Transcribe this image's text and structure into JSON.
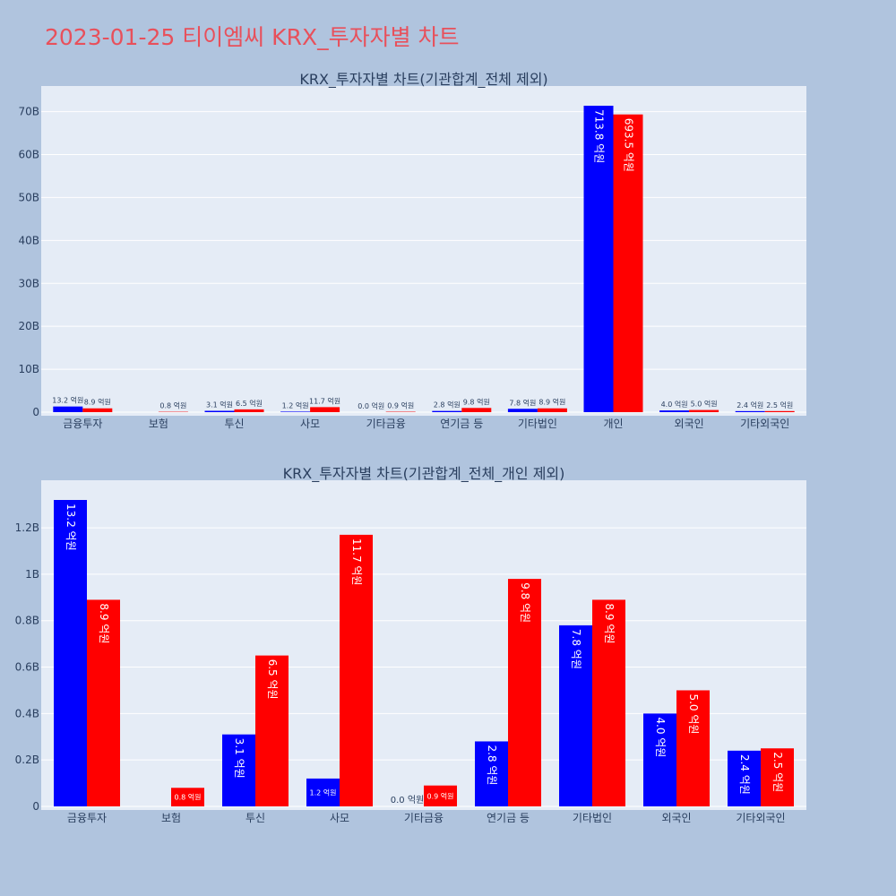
{
  "page": {
    "title": "2023-01-25 티이엠씨 KRX_투자자별 차트"
  },
  "colors": {
    "background": "#b0c4de",
    "plot_bg": "#e5ecf6",
    "series_a": "#0000ff",
    "series_b": "#ff0000",
    "title": "#e8505b"
  },
  "chart_data": [
    {
      "type": "bar",
      "title": "KRX_투자자별 차트(기관합계_전체 제외)",
      "categories": [
        "금융투자",
        "보험",
        "투신",
        "사모",
        "기타금융",
        "연기금 등",
        "기타법인",
        "개인",
        "외국인",
        "기타외국인"
      ],
      "ylim": [
        0,
        71.38
      ],
      "yticks": [
        0,
        10,
        20,
        30,
        40,
        50,
        60,
        70
      ],
      "ytick_labels": [
        "0",
        "10B",
        "20B",
        "30B",
        "40B",
        "50B",
        "60B",
        "70B"
      ],
      "grid": true,
      "series": [
        {
          "values": [
            1.32,
            0,
            0.31,
            0.12,
            0.0,
            0.28,
            0.78,
            71.38,
            0.4,
            0.24
          ],
          "labels": [
            "13.2 억원",
            "",
            "3.1 억원",
            "1.2 억원",
            "0.0 억원",
            "2.8 억원",
            "7.8 억원",
            "713.8 억원",
            "4.0 억원",
            "2.4 억원"
          ]
        },
        {
          "values": [
            0.89,
            0.08,
            0.65,
            1.17,
            0.09,
            0.98,
            0.89,
            69.35,
            0.5,
            0.25
          ],
          "labels": [
            "8.9 억원",
            "0.8 억원",
            "6.5 억원",
            "11.7 억원",
            "0.9 억원",
            "9.8 억원",
            "8.9 억원",
            "693.5 억원",
            "5.0 억원",
            "2.5 억원"
          ]
        }
      ]
    },
    {
      "type": "bar",
      "title": "KRX_투자자별 차트(기관합계_전체_개인 제외)",
      "categories": [
        "금융투자",
        "보험",
        "투신",
        "사모",
        "기타금융",
        "연기금 등",
        "기타법인",
        "외국인",
        "기타외국인"
      ],
      "ylim": [
        0,
        1.32
      ],
      "yticks": [
        0,
        0.2,
        0.4,
        0.6,
        0.8,
        1.0,
        1.2
      ],
      "ytick_labels": [
        "0",
        "0.2B",
        "0.4B",
        "0.6B",
        "0.8B",
        "1B",
        "1.2B"
      ],
      "grid": true,
      "series": [
        {
          "values": [
            1.32,
            0,
            0.31,
            0.12,
            0.0,
            0.28,
            0.78,
            0.4,
            0.24
          ],
          "labels": [
            "13.2 억원",
            "",
            "3.1 억원",
            "1.2 억원",
            "0.0 억원",
            "2.8 억원",
            "7.8 억원",
            "4.0 억원",
            "2.4 억원"
          ]
        },
        {
          "values": [
            0.89,
            0.08,
            0.65,
            1.17,
            0.09,
            0.98,
            0.89,
            0.5,
            0.25
          ],
          "labels": [
            "8.9 억원",
            "0.8 억원",
            "6.5 억원",
            "11.7 억원",
            "0.9 억원",
            "9.8 억원",
            "8.9 억원",
            "5.0 억원",
            "2.5 억원"
          ]
        }
      ]
    }
  ]
}
